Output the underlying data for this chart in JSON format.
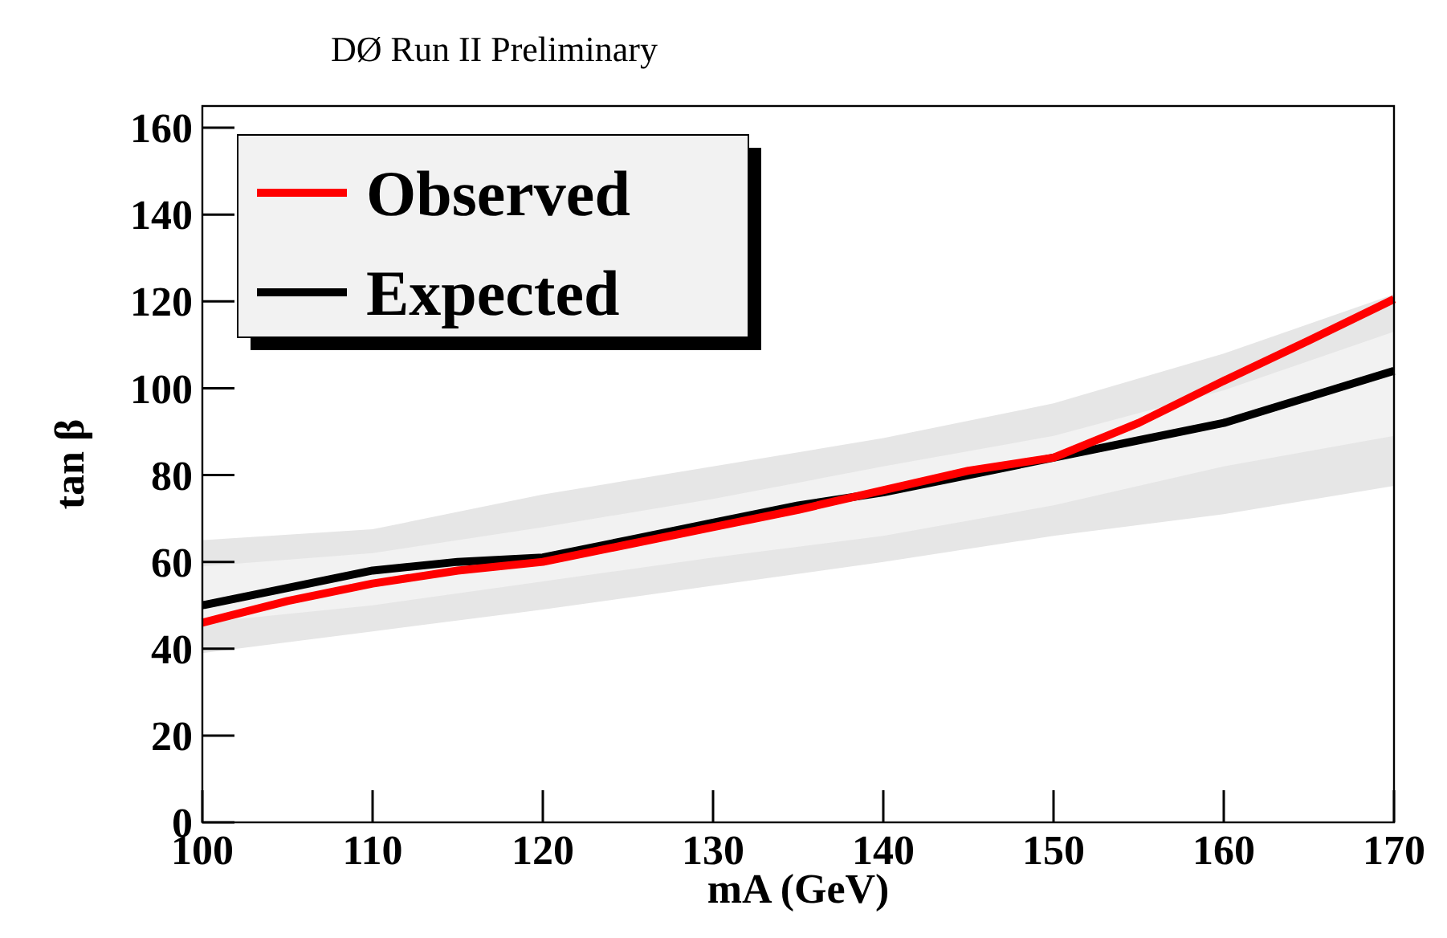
{
  "chart_data": {
    "type": "line",
    "title": "DØ Run II Preliminary",
    "xlabel": "mA (GeV)",
    "ylabel": "tan β",
    "xlim": [
      100,
      170
    ],
    "xticks": [
      100,
      110,
      120,
      130,
      140,
      150,
      160,
      170
    ],
    "ylim": [
      0,
      165
    ],
    "yticks": [
      0,
      20,
      40,
      60,
      80,
      100,
      120,
      140,
      160
    ],
    "legend": "top left",
    "grid": false,
    "series": [
      {
        "color": "#e6e6e6",
        "x": [
          100,
          110,
          120,
          130,
          140,
          150,
          160,
          170
        ],
        "values": [
          null,
          null,
          null,
          null,
          null,
          null,
          null,
          null
        ],
        "lower": [
          39,
          44,
          49,
          54.5,
          60,
          66,
          71,
          77.5
        ],
        "upper": [
          65,
          67.5,
          75.5,
          82,
          88.5,
          96.5,
          108,
          121.6
        ]
      },
      {
        "name": "Expected",
        "color": "#000000",
        "x": [
          100,
          105,
          110,
          115,
          120,
          125,
          130,
          135,
          140,
          145,
          150,
          155,
          160,
          165,
          170
        ],
        "values": [
          50,
          54,
          58,
          60,
          61,
          65,
          69,
          73,
          76,
          80,
          84,
          88,
          92,
          98,
          104
        ]
      },
      {
        "name": "Observed",
        "color": "#ff0000",
        "x": [
          100,
          105,
          110,
          115,
          120,
          125,
          130,
          135,
          140,
          145,
          150,
          155,
          160,
          165,
          170
        ],
        "values": [
          46,
          51,
          55,
          58,
          60,
          64,
          68,
          72,
          76.5,
          81,
          84,
          92,
          101.7,
          111,
          120.5
        ]
      },
      {
        "color": "#f2f2f2",
        "x": [
          100,
          110,
          120,
          130,
          140,
          150,
          160,
          170
        ],
        "values": [
          null,
          null,
          null,
          null,
          null,
          null,
          null,
          null
        ],
        "lower": [
          46,
          50,
          55.5,
          61,
          66,
          73,
          82,
          89
        ],
        "upper": [
          59,
          62,
          68,
          74.5,
          82,
          89,
          99.5,
          113
        ]
      }
    ]
  }
}
